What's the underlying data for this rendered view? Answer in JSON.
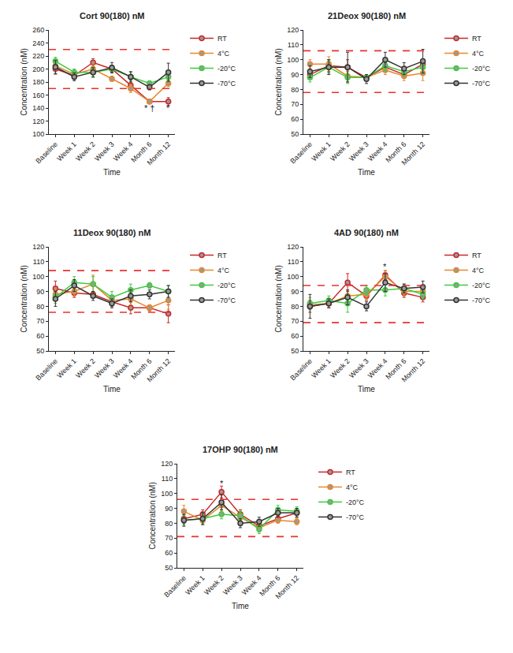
{
  "chart_data": [
    {
      "type": "line",
      "title": "Cort 90(180) nM",
      "x_label": "Time",
      "y_label": "Concentration (nM)",
      "categories": [
        "Baseline",
        "Week 1",
        "Week 2",
        "Week 3",
        "Week 4",
        "Month 6",
        "Month 12"
      ],
      "ylim": [
        100,
        260
      ],
      "yticks": [
        100,
        120,
        140,
        160,
        180,
        200,
        220,
        240,
        260
      ],
      "reference_lines": [
        170,
        230
      ],
      "legend": "right",
      "marker": "circle",
      "series": [
        {
          "name": "RT",
          "color": "#c62828",
          "values": [
            200,
            190,
            210,
            200,
            175,
            150,
            150
          ],
          "errors": [
            8,
            6,
            6,
            5,
            8,
            3,
            6
          ]
        },
        {
          "name": "4°C",
          "color": "#e6892e",
          "values": [
            205,
            192,
            200,
            185,
            170,
            150,
            178
          ],
          "errors": [
            8,
            6,
            8,
            4,
            6,
            3,
            5
          ]
        },
        {
          "name": "-20°C",
          "color": "#3dcc3d",
          "values": [
            212,
            195,
            195,
            200,
            188,
            178,
            188
          ],
          "errors": [
            6,
            5,
            8,
            6,
            7,
            4,
            6
          ]
        },
        {
          "name": "-70°C",
          "color": "#333333",
          "values": [
            203,
            188,
            195,
            202,
            188,
            172,
            195
          ],
          "errors": [
            10,
            6,
            7,
            8,
            8,
            4,
            14
          ]
        }
      ],
      "annotations": [
        {
          "text": "* †",
          "x": "Month 6",
          "y": 140
        },
        {
          "text": "*",
          "x": "Month 12",
          "y": 140
        }
      ]
    },
    {
      "type": "line",
      "title": "21Deox 90(180) nM",
      "x_label": "Time",
      "y_label": "Concentration (nM)",
      "categories": [
        "Baseline",
        "Week 1",
        "Week 2",
        "Week 3",
        "Week 4",
        "Month 6",
        "Month 12"
      ],
      "ylim": [
        50,
        120
      ],
      "yticks": [
        50,
        60,
        70,
        80,
        90,
        100,
        110,
        120
      ],
      "reference_lines": [
        78,
        106
      ],
      "legend": "right",
      "marker": "circle",
      "series": [
        {
          "name": "RT",
          "color": "#c62828",
          "values": [
            90,
            96,
            95,
            88,
            95,
            90,
            97
          ],
          "errors": [
            3,
            4,
            5,
            2,
            3,
            2,
            3
          ]
        },
        {
          "name": "4°C",
          "color": "#e6892e",
          "values": [
            97,
            97,
            89,
            88,
            93,
            89,
            91
          ],
          "errors": [
            3,
            5,
            4,
            2,
            3,
            3,
            5
          ]
        },
        {
          "name": "-20°C",
          "color": "#3dcc3d",
          "values": [
            88,
            95,
            88,
            88,
            96,
            92,
            95
          ],
          "errors": [
            3,
            4,
            4,
            2,
            4,
            3,
            4
          ]
        },
        {
          "name": "-70°C",
          "color": "#333333",
          "values": [
            92,
            95,
            95,
            87,
            100,
            94,
            99
          ],
          "errors": [
            4,
            5,
            10,
            3,
            5,
            4,
            8
          ]
        }
      ],
      "annotations": []
    },
    {
      "type": "line",
      "title": "11Deox 90(180) nM",
      "x_label": "Time",
      "y_label": "Concentration (nM)",
      "categories": [
        "Baseline",
        "Week 1",
        "Week 2",
        "Week 3",
        "Week 4",
        "Month 6",
        "Month 12"
      ],
      "ylim": [
        50,
        120
      ],
      "yticks": [
        50,
        60,
        70,
        80,
        90,
        100,
        110,
        120
      ],
      "reference_lines": [
        76,
        104
      ],
      "legend": "right",
      "marker": "circle",
      "series": [
        {
          "name": "RT",
          "color": "#c62828",
          "values": [
            92,
            89,
            88,
            83,
            79,
            79,
            75
          ],
          "errors": [
            5,
            3,
            2,
            3,
            4,
            2,
            6
          ]
        },
        {
          "name": "4°C",
          "color": "#e6892e",
          "values": [
            88,
            90,
            95,
            84,
            85,
            79,
            84
          ],
          "errors": [
            4,
            3,
            6,
            3,
            4,
            2,
            6
          ]
        },
        {
          "name": "-20°C",
          "color": "#3dcc3d",
          "values": [
            86,
            96,
            95,
            86,
            91,
            94,
            90
          ],
          "errors": [
            4,
            4,
            5,
            4,
            4,
            2,
            4
          ]
        },
        {
          "name": "-70°C",
          "color": "#333333",
          "values": [
            85,
            94,
            87,
            82,
            87,
            88,
            90
          ],
          "errors": [
            5,
            4,
            3,
            3,
            4,
            3,
            4
          ]
        }
      ],
      "annotations": []
    },
    {
      "type": "line",
      "title": "4AD 90(180) nM",
      "x_label": "Time",
      "y_label": "Concentration (nM)",
      "categories": [
        "Baseline",
        "Week 1",
        "Week 2",
        "Week 3",
        "Week 4",
        "Month 6",
        "Month 12"
      ],
      "ylim": [
        50,
        120
      ],
      "yticks": [
        50,
        60,
        70,
        80,
        90,
        100,
        110,
        120
      ],
      "reference_lines": [
        69,
        94
      ],
      "legend": "right",
      "marker": "circle",
      "series": [
        {
          "name": "RT",
          "color": "#c62828",
          "values": [
            80,
            82,
            96,
            87,
            101,
            89,
            86
          ],
          "errors": [
            4,
            3,
            6,
            3,
            3,
            3,
            3
          ]
        },
        {
          "name": "4°C",
          "color": "#e6892e",
          "values": [
            81,
            82,
            87,
            88,
            100,
            90,
            90
          ],
          "errors": [
            3,
            3,
            4,
            3,
            4,
            3,
            3
          ]
        },
        {
          "name": "-20°C",
          "color": "#3dcc3d",
          "values": [
            82,
            84,
            82,
            91,
            91,
            92,
            88
          ],
          "errors": [
            4,
            3,
            6,
            3,
            4,
            3,
            3
          ]
        },
        {
          "name": "-70°C",
          "color": "#333333",
          "values": [
            80,
            82,
            86,
            80,
            96,
            92,
            93
          ],
          "errors": [
            8,
            3,
            5,
            3,
            6,
            3,
            4
          ]
        }
      ],
      "annotations": [
        {
          "text": "*",
          "x": "Week 4",
          "y": 107
        }
      ]
    },
    {
      "type": "line",
      "title": "17OHP 90(180) nM",
      "x_label": "Time",
      "y_label": "Concentration (nM)",
      "categories": [
        "Baseline",
        "Week 1",
        "Week 2",
        "Week 3",
        "Week 4",
        "Month 6",
        "Month 12"
      ],
      "ylim": [
        50,
        120
      ],
      "yticks": [
        50,
        60,
        70,
        80,
        90,
        100,
        110,
        120
      ],
      "reference_lines": [
        71,
        96
      ],
      "legend": "right",
      "marker": "circle",
      "series": [
        {
          "name": "RT",
          "color": "#c62828",
          "values": [
            83,
            86,
            101,
            86,
            78,
            83,
            87
          ],
          "errors": [
            3,
            3,
            4,
            3,
            3,
            2,
            3
          ]
        },
        {
          "name": "4°C",
          "color": "#e6892e",
          "values": [
            88,
            82,
            92,
            84,
            77,
            82,
            81
          ],
          "errors": [
            4,
            3,
            4,
            3,
            3,
            2,
            2
          ]
        },
        {
          "name": "-20°C",
          "color": "#3dcc3d",
          "values": [
            82,
            83,
            86,
            85,
            76,
            89,
            88
          ],
          "errors": [
            3,
            3,
            3,
            3,
            3,
            3,
            3
          ]
        },
        {
          "name": "-70°C",
          "color": "#333333",
          "values": [
            82,
            83,
            94,
            80,
            81,
            87,
            87
          ],
          "errors": [
            4,
            4,
            5,
            3,
            3,
            3,
            3
          ]
        }
      ],
      "annotations": [
        {
          "text": "*",
          "x": "Week 2",
          "y": 107
        }
      ]
    }
  ]
}
